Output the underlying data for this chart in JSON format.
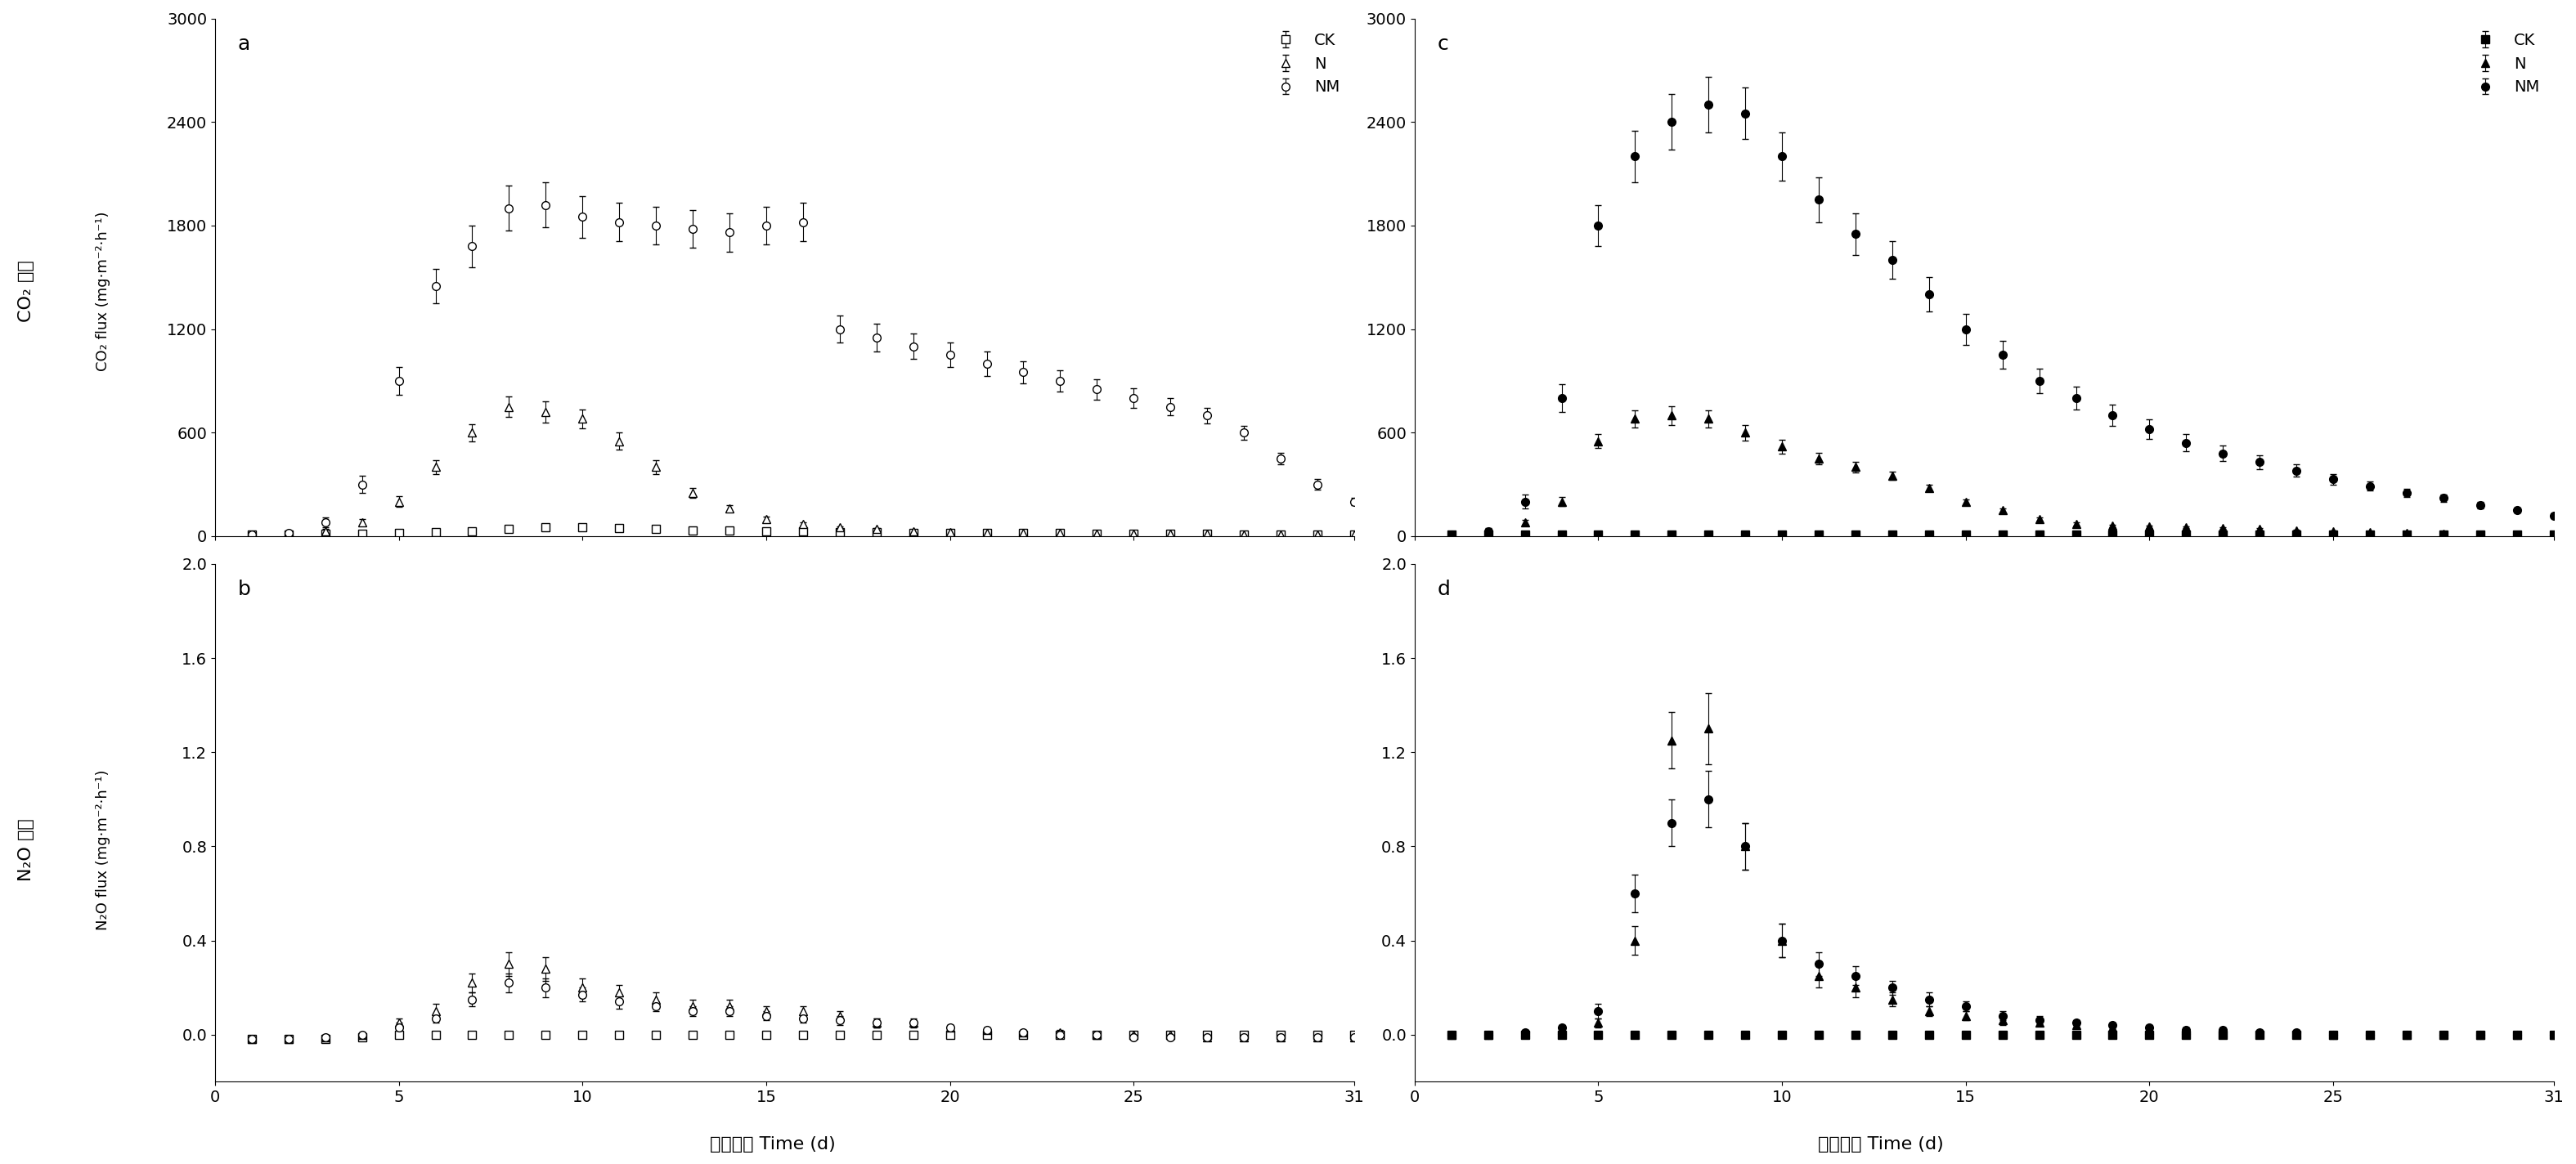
{
  "panel_a": {
    "label": "a",
    "CK": {
      "x": [
        1,
        2,
        3,
        4,
        5,
        6,
        7,
        8,
        9,
        10,
        11,
        12,
        13,
        14,
        15,
        16,
        17,
        18,
        19,
        20,
        21,
        22,
        23,
        24,
        25,
        26,
        27,
        28,
        29,
        30,
        31
      ],
      "y": [
        10,
        10,
        15,
        15,
        20,
        25,
        30,
        40,
        50,
        50,
        45,
        40,
        35,
        35,
        30,
        30,
        25,
        25,
        20,
        20,
        20,
        20,
        20,
        15,
        15,
        15,
        15,
        10,
        10,
        10,
        10
      ],
      "yerr": [
        3,
        3,
        3,
        3,
        3,
        3,
        5,
        5,
        5,
        5,
        5,
        5,
        5,
        5,
        5,
        4,
        4,
        4,
        4,
        4,
        4,
        4,
        4,
        4,
        4,
        4,
        4,
        3,
        3,
        3,
        3
      ]
    },
    "N": {
      "x": [
        1,
        2,
        3,
        4,
        5,
        6,
        7,
        8,
        9,
        10,
        11,
        12,
        13,
        14,
        15,
        16,
        17,
        18,
        19,
        20,
        21,
        22,
        23,
        24,
        25,
        26,
        27,
        28,
        29,
        30,
        31
      ],
      "y": [
        10,
        15,
        30,
        80,
        200,
        400,
        600,
        750,
        720,
        680,
        550,
        400,
        250,
        160,
        100,
        70,
        50,
        40,
        30,
        25,
        20,
        20,
        20,
        15,
        15,
        15,
        15,
        10,
        10,
        10,
        10
      ],
      "yerr": [
        3,
        5,
        10,
        20,
        30,
        40,
        50,
        60,
        60,
        55,
        50,
        40,
        30,
        20,
        15,
        10,
        8,
        7,
        6,
        5,
        4,
        4,
        4,
        3,
        3,
        3,
        3,
        3,
        3,
        3,
        3
      ]
    },
    "NM": {
      "x": [
        1,
        2,
        3,
        4,
        5,
        6,
        7,
        8,
        9,
        10,
        11,
        12,
        13,
        14,
        15,
        16,
        17,
        18,
        19,
        20,
        21,
        22,
        23,
        24,
        25,
        26,
        27,
        28,
        29,
        30,
        31
      ],
      "y": [
        10,
        20,
        80,
        300,
        900,
        1450,
        1680,
        1900,
        1920,
        1850,
        1820,
        1800,
        1780,
        1760,
        1800,
        1820,
        1200,
        1150,
        1100,
        1050,
        1000,
        950,
        900,
        850,
        800,
        750,
        700,
        600,
        450,
        300,
        200
      ],
      "yerr": [
        5,
        10,
        30,
        50,
        80,
        100,
        120,
        130,
        130,
        120,
        110,
        110,
        110,
        110,
        110,
        110,
        80,
        80,
        75,
        70,
        70,
        65,
        60,
        60,
        55,
        50,
        45,
        40,
        35,
        30,
        20
      ]
    },
    "ylim": [
      0,
      3000
    ],
    "yticks": [
      0,
      600,
      1200,
      1800,
      2400,
      3000
    ]
  },
  "panel_b": {
    "label": "b",
    "CK": {
      "x": [
        1,
        2,
        3,
        4,
        5,
        6,
        7,
        8,
        9,
        10,
        11,
        12,
        13,
        14,
        15,
        16,
        17,
        18,
        19,
        20,
        21,
        22,
        23,
        24,
        25,
        26,
        27,
        28,
        29,
        30,
        31
      ],
      "y": [
        -0.02,
        -0.02,
        -0.02,
        -0.01,
        0.0,
        0.0,
        0.0,
        0.0,
        0.0,
        0.0,
        0.0,
        0.0,
        0.0,
        0.0,
        0.0,
        0.0,
        0.0,
        0.0,
        0.0,
        0.0,
        0.0,
        0.0,
        0.0,
        0.0,
        0.0,
        0.0,
        0.0,
        0.0,
        0.0,
        0.0,
        0.0
      ],
      "yerr": [
        0.01,
        0.01,
        0.01,
        0.01,
        0.01,
        0.01,
        0.01,
        0.01,
        0.01,
        0.01,
        0.01,
        0.01,
        0.01,
        0.01,
        0.01,
        0.01,
        0.01,
        0.01,
        0.01,
        0.01,
        0.01,
        0.01,
        0.01,
        0.01,
        0.01,
        0.01,
        0.01,
        0.01,
        0.01,
        0.01,
        0.01
      ]
    },
    "N": {
      "x": [
        1,
        2,
        3,
        4,
        5,
        6,
        7,
        8,
        9,
        10,
        11,
        12,
        13,
        14,
        15,
        16,
        17,
        18,
        19,
        20,
        21,
        22,
        23,
        24,
        25,
        26,
        27,
        28,
        29,
        30,
        31
      ],
      "y": [
        -0.02,
        -0.02,
        -0.01,
        0.0,
        0.05,
        0.1,
        0.22,
        0.3,
        0.28,
        0.2,
        0.18,
        0.15,
        0.12,
        0.12,
        0.1,
        0.1,
        0.08,
        0.05,
        0.05,
        0.03,
        0.02,
        0.01,
        0.01,
        0.0,
        0.0,
        0.0,
        -0.01,
        -0.01,
        -0.01,
        -0.01,
        -0.01
      ],
      "yerr": [
        0.01,
        0.01,
        0.01,
        0.01,
        0.02,
        0.03,
        0.04,
        0.05,
        0.05,
        0.04,
        0.03,
        0.03,
        0.03,
        0.03,
        0.02,
        0.02,
        0.02,
        0.02,
        0.02,
        0.01,
        0.01,
        0.01,
        0.01,
        0.01,
        0.01,
        0.01,
        0.01,
        0.01,
        0.01,
        0.01,
        0.01
      ]
    },
    "NM": {
      "x": [
        1,
        2,
        3,
        4,
        5,
        6,
        7,
        8,
        9,
        10,
        11,
        12,
        13,
        14,
        15,
        16,
        17,
        18,
        19,
        20,
        21,
        22,
        23,
        24,
        25,
        26,
        27,
        28,
        29,
        30,
        31
      ],
      "y": [
        -0.02,
        -0.02,
        -0.01,
        0.0,
        0.03,
        0.07,
        0.15,
        0.22,
        0.2,
        0.17,
        0.14,
        0.12,
        0.1,
        0.1,
        0.08,
        0.07,
        0.06,
        0.05,
        0.05,
        0.03,
        0.02,
        0.01,
        0.0,
        0.0,
        -0.01,
        -0.01,
        -0.01,
        -0.01,
        -0.01,
        -0.01,
        -0.01
      ],
      "yerr": [
        0.01,
        0.01,
        0.01,
        0.01,
        0.02,
        0.02,
        0.03,
        0.04,
        0.04,
        0.03,
        0.03,
        0.02,
        0.02,
        0.02,
        0.02,
        0.02,
        0.02,
        0.02,
        0.01,
        0.01,
        0.01,
        0.01,
        0.01,
        0.01,
        0.01,
        0.01,
        0.01,
        0.01,
        0.01,
        0.01,
        0.01
      ]
    },
    "ylim": [
      -0.2,
      2.0
    ],
    "yticks": [
      0.0,
      0.4,
      0.8,
      1.2,
      1.6,
      2.0
    ]
  },
  "panel_c": {
    "label": "c",
    "CK": {
      "x": [
        1,
        2,
        3,
        4,
        5,
        6,
        7,
        8,
        9,
        10,
        11,
        12,
        13,
        14,
        15,
        16,
        17,
        18,
        19,
        20,
        21,
        22,
        23,
        24,
        25,
        26,
        27,
        28,
        29,
        30,
        31
      ],
      "y": [
        10,
        10,
        10,
        10,
        10,
        10,
        10,
        10,
        10,
        10,
        10,
        10,
        10,
        10,
        10,
        10,
        10,
        10,
        10,
        10,
        10,
        10,
        10,
        10,
        10,
        10,
        10,
        10,
        10,
        10,
        10
      ],
      "yerr": [
        3,
        3,
        3,
        3,
        3,
        3,
        3,
        3,
        3,
        3,
        3,
        3,
        3,
        3,
        3,
        3,
        3,
        3,
        3,
        3,
        3,
        3,
        3,
        3,
        3,
        3,
        3,
        3,
        3,
        3,
        3
      ]
    },
    "N": {
      "x": [
        1,
        2,
        3,
        4,
        5,
        6,
        7,
        8,
        9,
        10,
        11,
        12,
        13,
        14,
        15,
        16,
        17,
        18,
        19,
        20,
        21,
        22,
        23,
        24,
        25,
        26,
        27,
        28,
        29,
        30,
        31
      ],
      "y": [
        10,
        20,
        80,
        200,
        550,
        680,
        700,
        680,
        600,
        520,
        450,
        400,
        350,
        280,
        200,
        150,
        100,
        70,
        60,
        55,
        50,
        45,
        40,
        35,
        30,
        25,
        20,
        15,
        10,
        10,
        10
      ],
      "yerr": [
        5,
        8,
        15,
        25,
        40,
        50,
        55,
        50,
        45,
        40,
        35,
        30,
        25,
        20,
        15,
        12,
        10,
        8,
        7,
        6,
        5,
        5,
        5,
        4,
        4,
        4,
        3,
        3,
        3,
        3,
        3
      ]
    },
    "NM": {
      "x": [
        1,
        2,
        3,
        4,
        5,
        6,
        7,
        8,
        9,
        10,
        11,
        12,
        13,
        14,
        15,
        16,
        17,
        18,
        19,
        20,
        21,
        22,
        23,
        24,
        25,
        26,
        27,
        28,
        29,
        30,
        31
      ],
      "y": [
        10,
        30,
        200,
        800,
        1800,
        2200,
        2400,
        2500,
        2450,
        2200,
        1950,
        1750,
        1600,
        1400,
        1200,
        1050,
        900,
        800,
        700,
        620,
        540,
        480,
        430,
        380,
        330,
        290,
        250,
        220,
        180,
        150,
        120
      ],
      "yerr": [
        5,
        15,
        40,
        80,
        120,
        150,
        160,
        160,
        150,
        140,
        130,
        120,
        110,
        100,
        90,
        80,
        70,
        65,
        60,
        55,
        50,
        45,
        40,
        35,
        30,
        25,
        22,
        20,
        18,
        15,
        12
      ]
    },
    "ylim": [
      0,
      3000
    ],
    "yticks": [
      0,
      600,
      1200,
      1800,
      2400,
      3000
    ]
  },
  "panel_d": {
    "label": "d",
    "CK": {
      "x": [
        1,
        2,
        3,
        4,
        5,
        6,
        7,
        8,
        9,
        10,
        11,
        12,
        13,
        14,
        15,
        16,
        17,
        18,
        19,
        20,
        21,
        22,
        23,
        24,
        25,
        26,
        27,
        28,
        29,
        30,
        31
      ],
      "y": [
        0.0,
        0.0,
        0.0,
        0.0,
        0.0,
        0.0,
        0.0,
        0.0,
        0.0,
        0.0,
        0.0,
        0.0,
        0.0,
        0.0,
        0.0,
        0.0,
        0.0,
        0.0,
        0.0,
        0.0,
        0.0,
        0.0,
        0.0,
        0.0,
        0.0,
        0.0,
        0.0,
        0.0,
        0.0,
        0.0,
        0.0
      ],
      "yerr": [
        0.01,
        0.01,
        0.01,
        0.01,
        0.01,
        0.01,
        0.01,
        0.01,
        0.01,
        0.01,
        0.01,
        0.01,
        0.01,
        0.01,
        0.01,
        0.01,
        0.01,
        0.01,
        0.01,
        0.01,
        0.01,
        0.01,
        0.01,
        0.01,
        0.01,
        0.01,
        0.01,
        0.01,
        0.01,
        0.01,
        0.01
      ]
    },
    "N": {
      "x": [
        1,
        2,
        3,
        4,
        5,
        6,
        7,
        8,
        9,
        10,
        11,
        12,
        13,
        14,
        15,
        16,
        17,
        18,
        19,
        20,
        21,
        22,
        23,
        24,
        25,
        26,
        27,
        28,
        29,
        30,
        31
      ],
      "y": [
        0.0,
        0.0,
        0.01,
        0.02,
        0.05,
        0.4,
        1.25,
        1.3,
        0.8,
        0.4,
        0.25,
        0.2,
        0.15,
        0.1,
        0.08,
        0.06,
        0.05,
        0.04,
        0.03,
        0.02,
        0.02,
        0.01,
        0.01,
        0.01,
        0.0,
        0.0,
        0.0,
        0.0,
        0.0,
        0.0,
        0.0
      ],
      "yerr": [
        0.01,
        0.01,
        0.01,
        0.01,
        0.02,
        0.06,
        0.12,
        0.15,
        0.1,
        0.07,
        0.05,
        0.04,
        0.03,
        0.02,
        0.02,
        0.02,
        0.01,
        0.01,
        0.01,
        0.01,
        0.01,
        0.01,
        0.01,
        0.01,
        0.01,
        0.01,
        0.01,
        0.01,
        0.01,
        0.01,
        0.01
      ]
    },
    "NM": {
      "x": [
        1,
        2,
        3,
        4,
        5,
        6,
        7,
        8,
        9,
        10,
        11,
        12,
        13,
        14,
        15,
        16,
        17,
        18,
        19,
        20,
        21,
        22,
        23,
        24,
        25,
        26,
        27,
        28,
        29,
        30,
        31
      ],
      "y": [
        0.0,
        0.0,
        0.01,
        0.03,
        0.1,
        0.6,
        0.9,
        1.0,
        0.8,
        0.4,
        0.3,
        0.25,
        0.2,
        0.15,
        0.12,
        0.08,
        0.06,
        0.05,
        0.04,
        0.03,
        0.02,
        0.02,
        0.01,
        0.01,
        0.0,
        0.0,
        0.0,
        0.0,
        0.0,
        0.0,
        0.0
      ],
      "yerr": [
        0.01,
        0.01,
        0.01,
        0.01,
        0.03,
        0.08,
        0.1,
        0.12,
        0.1,
        0.07,
        0.05,
        0.04,
        0.03,
        0.03,
        0.02,
        0.02,
        0.02,
        0.01,
        0.01,
        0.01,
        0.01,
        0.01,
        0.01,
        0.01,
        0.01,
        0.01,
        0.01,
        0.01,
        0.01,
        0.01,
        0.01
      ]
    },
    "ylim": [
      -0.2,
      2.0
    ],
    "yticks": [
      0.0,
      0.4,
      0.8,
      1.2,
      1.6,
      2.0
    ]
  },
  "xlabel": "试验时间 Time (d)",
  "ylabel_co2_cn": "CO₂ 通量",
  "ylabel_co2_en": "CO₂ flux (mg·m⁻²·h⁻¹)",
  "ylabel_n2o_cn": "N₂O 通量",
  "ylabel_n2o_en": "N₂O flux (mg·m⁻²·h⁻¹)",
  "xticks": [
    0,
    5,
    10,
    15,
    20,
    25,
    31
  ],
  "legend_labels": [
    "CK",
    "N",
    "NM"
  ],
  "color": "#000000",
  "linewidth": 1.5,
  "markersize": 7,
  "capsize": 3
}
